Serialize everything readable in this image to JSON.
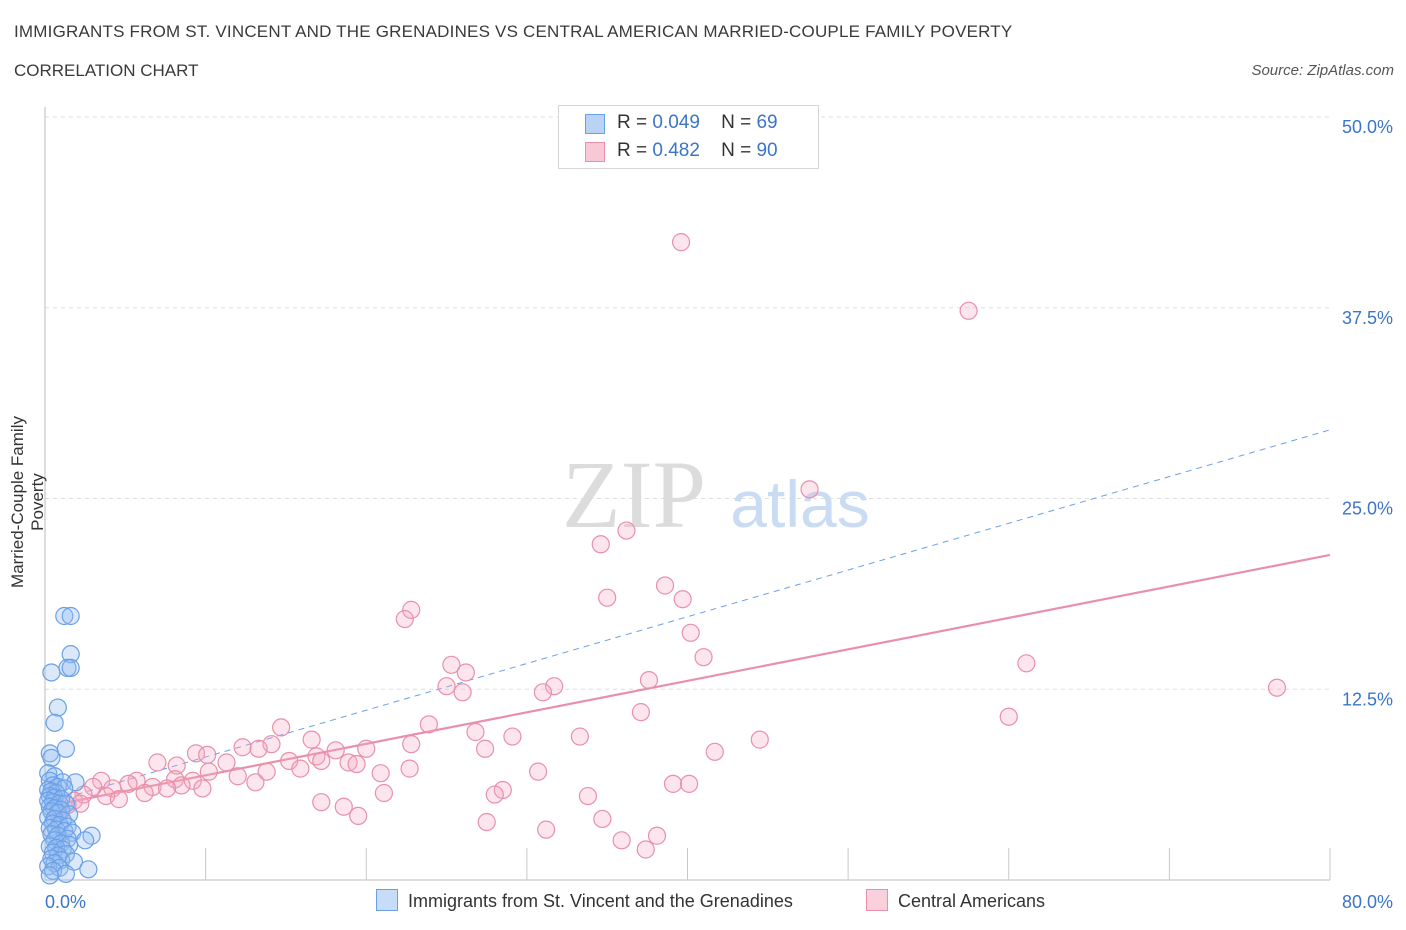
{
  "header": {
    "title": "IMMIGRANTS FROM ST. VINCENT AND THE GRENADINES VS CENTRAL AMERICAN MARRIED-COUPLE FAMILY POVERTY",
    "subtitle": "CORRELATION CHART",
    "source": "Source: ZipAtlas.com"
  },
  "watermark": {
    "zip": "ZIP",
    "atlas": "atlas"
  },
  "legend": {
    "rows": [
      {
        "r_label": "R =",
        "r_value": "0.049",
        "n_label": "N =",
        "n_value": "69",
        "color": "#6aa0e8",
        "fill": "#b9d3f5"
      },
      {
        "r_label": "R =",
        "r_value": "0.482",
        "n_label": "N =",
        "n_value": "90",
        "color": "#e890aa",
        "fill": "#f8c8d6"
      }
    ]
  },
  "bottom_legend": [
    {
      "label": "Immigrants from St. Vincent and the Grenadines",
      "color": "#6aa0e8",
      "fill": "#c7dcf7"
    },
    {
      "label": "Central Americans",
      "color": "#e890aa",
      "fill": "#fad0dd"
    }
  ],
  "chart_data": {
    "type": "scatter",
    "title": "IMMIGRANTS FROM ST. VINCENT AND THE GRENADINES VS CENTRAL AMERICAN MARRIED-COUPLE FAMILY POVERTY",
    "xlabel": "",
    "ylabel": "Married-Couple Family Poverty",
    "xlim": [
      0,
      80
    ],
    "ylim": [
      0,
      50
    ],
    "x_tick_labels": [
      "0.0%",
      "80.0%"
    ],
    "y_ticks": [
      12.5,
      25.0,
      37.5,
      50.0
    ],
    "y_tick_labels": [
      "12.5%",
      "25.0%",
      "37.5%",
      "50.0%"
    ],
    "grid": true,
    "legend_position": "top-center",
    "series": [
      {
        "name": "Immigrants from St. Vincent and the Grenadines",
        "color": "#6aa0e8",
        "trend": {
          "style": "dashed",
          "x": [
            0,
            80
          ],
          "y": [
            5.0,
            29.5
          ]
        },
        "points": [
          [
            1.2,
            17.3
          ],
          [
            1.6,
            17.3
          ],
          [
            1.6,
            14.8
          ],
          [
            1.4,
            13.9
          ],
          [
            1.6,
            13.9
          ],
          [
            0.4,
            13.6
          ],
          [
            0.8,
            11.3
          ],
          [
            0.6,
            10.3
          ],
          [
            1.3,
            8.6
          ],
          [
            0.3,
            8.3
          ],
          [
            0.4,
            8.0
          ],
          [
            0.2,
            7.0
          ],
          [
            0.6,
            6.8
          ],
          [
            0.3,
            6.5
          ],
          [
            1.1,
            6.4
          ],
          [
            1.9,
            6.4
          ],
          [
            0.5,
            6.2
          ],
          [
            0.8,
            6.1
          ],
          [
            1.2,
            6.0
          ],
          [
            0.2,
            5.9
          ],
          [
            0.4,
            5.8
          ],
          [
            0.7,
            5.7
          ],
          [
            0.3,
            5.5
          ],
          [
            0.6,
            5.4
          ],
          [
            1.0,
            5.3
          ],
          [
            0.2,
            5.2
          ],
          [
            0.5,
            5.1
          ],
          [
            0.9,
            5.0
          ],
          [
            1.3,
            5.0
          ],
          [
            0.3,
            4.8
          ],
          [
            0.6,
            4.7
          ],
          [
            1.0,
            4.6
          ],
          [
            0.4,
            4.5
          ],
          [
            0.8,
            4.4
          ],
          [
            1.5,
            4.3
          ],
          [
            0.2,
            4.1
          ],
          [
            0.6,
            4.0
          ],
          [
            1.1,
            3.9
          ],
          [
            0.5,
            3.7
          ],
          [
            0.9,
            3.6
          ],
          [
            1.4,
            3.5
          ],
          [
            0.3,
            3.4
          ],
          [
            0.7,
            3.3
          ],
          [
            1.2,
            3.2
          ],
          [
            1.7,
            3.1
          ],
          [
            0.4,
            3.0
          ],
          [
            0.8,
            2.9
          ],
          [
            2.9,
            2.9
          ],
          [
            1.4,
            2.7
          ],
          [
            0.6,
            2.6
          ],
          [
            2.5,
            2.6
          ],
          [
            1.0,
            2.4
          ],
          [
            1.5,
            2.3
          ],
          [
            0.3,
            2.2
          ],
          [
            0.7,
            2.1
          ],
          [
            1.1,
            2.0
          ],
          [
            0.5,
            1.8
          ],
          [
            1.3,
            1.7
          ],
          [
            0.8,
            1.6
          ],
          [
            0.4,
            1.4
          ],
          [
            1.0,
            1.3
          ],
          [
            1.8,
            1.2
          ],
          [
            0.6,
            1.1
          ],
          [
            0.2,
            0.9
          ],
          [
            0.9,
            0.8
          ],
          [
            2.7,
            0.7
          ],
          [
            0.5,
            0.6
          ],
          [
            1.3,
            0.4
          ],
          [
            0.3,
            0.3
          ]
        ]
      },
      {
        "name": "Central Americans",
        "color": "#e890aa",
        "trend": {
          "style": "solid",
          "x": [
            0,
            80
          ],
          "y": [
            4.8,
            21.3
          ]
        },
        "points": [
          [
            39.6,
            41.8
          ],
          [
            57.5,
            37.3
          ],
          [
            47.6,
            25.6
          ],
          [
            36.2,
            22.9
          ],
          [
            34.6,
            22.0
          ],
          [
            35.0,
            18.5
          ],
          [
            38.6,
            19.3
          ],
          [
            39.7,
            18.4
          ],
          [
            22.8,
            17.7
          ],
          [
            22.4,
            17.1
          ],
          [
            40.2,
            16.2
          ],
          [
            41.0,
            14.6
          ],
          [
            61.1,
            14.2
          ],
          [
            25.3,
            14.1
          ],
          [
            26.2,
            13.6
          ],
          [
            37.6,
            13.1
          ],
          [
            25.0,
            12.7
          ],
          [
            26.0,
            12.3
          ],
          [
            31.7,
            12.7
          ],
          [
            31.0,
            12.3
          ],
          [
            76.7,
            12.6
          ],
          [
            37.1,
            11.0
          ],
          [
            60.0,
            10.7
          ],
          [
            23.9,
            10.2
          ],
          [
            14.7,
            10.0
          ],
          [
            26.8,
            9.7
          ],
          [
            33.3,
            9.4
          ],
          [
            29.1,
            9.4
          ],
          [
            16.6,
            9.2
          ],
          [
            44.5,
            9.2
          ],
          [
            14.1,
            8.9
          ],
          [
            22.8,
            8.9
          ],
          [
            12.3,
            8.7
          ],
          [
            13.3,
            8.6
          ],
          [
            20.0,
            8.6
          ],
          [
            27.4,
            8.6
          ],
          [
            18.1,
            8.5
          ],
          [
            41.7,
            8.4
          ],
          [
            9.4,
            8.3
          ],
          [
            10.1,
            8.2
          ],
          [
            16.9,
            8.1
          ],
          [
            15.2,
            7.8
          ],
          [
            17.2,
            7.8
          ],
          [
            7.0,
            7.7
          ],
          [
            11.3,
            7.7
          ],
          [
            18.9,
            7.7
          ],
          [
            19.4,
            7.6
          ],
          [
            8.2,
            7.5
          ],
          [
            15.9,
            7.3
          ],
          [
            22.7,
            7.3
          ],
          [
            10.2,
            7.1
          ],
          [
            13.8,
            7.1
          ],
          [
            30.7,
            7.1
          ],
          [
            20.9,
            7.0
          ],
          [
            12.0,
            6.8
          ],
          [
            8.1,
            6.6
          ],
          [
            3.5,
            6.5
          ],
          [
            5.7,
            6.5
          ],
          [
            9.2,
            6.5
          ],
          [
            13.1,
            6.4
          ],
          [
            5.2,
            6.3
          ],
          [
            39.1,
            6.3
          ],
          [
            40.1,
            6.3
          ],
          [
            8.5,
            6.2
          ],
          [
            3.0,
            6.1
          ],
          [
            6.7,
            6.1
          ],
          [
            9.8,
            6.0
          ],
          [
            4.2,
            6.0
          ],
          [
            7.6,
            6.0
          ],
          [
            28.5,
            5.9
          ],
          [
            6.2,
            5.7
          ],
          [
            21.1,
            5.7
          ],
          [
            28.0,
            5.6
          ],
          [
            2.4,
            5.6
          ],
          [
            3.8,
            5.5
          ],
          [
            33.8,
            5.5
          ],
          [
            4.6,
            5.3
          ],
          [
            1.8,
            5.2
          ],
          [
            2.2,
            5.0
          ],
          [
            1.4,
            4.9
          ],
          [
            17.2,
            5.1
          ],
          [
            18.6,
            4.8
          ],
          [
            0.8,
            4.7
          ],
          [
            1.0,
            4.5
          ],
          [
            19.5,
            4.2
          ],
          [
            34.7,
            4.0
          ],
          [
            27.5,
            3.8
          ],
          [
            31.2,
            3.3
          ],
          [
            38.1,
            2.9
          ],
          [
            35.9,
            2.6
          ],
          [
            37.4,
            2.0
          ]
        ]
      }
    ]
  },
  "axis_labels": {
    "ylabel": "Married-Couple Family Poverty",
    "x_min_label": "0.0%",
    "x_max_label": "80.0%"
  },
  "colors": {
    "blue_text": "#3b75c8",
    "grid": "#dddddd",
    "axis": "#bbbbbb"
  }
}
